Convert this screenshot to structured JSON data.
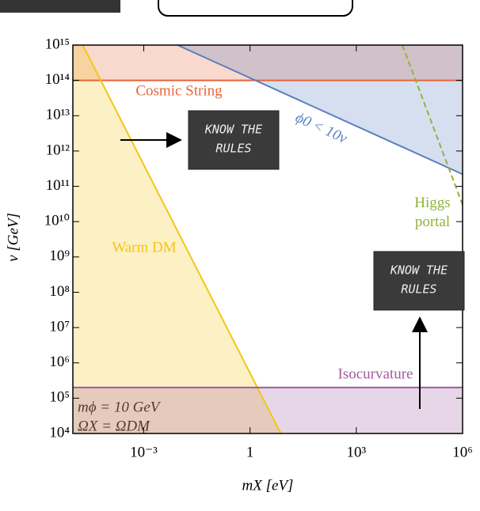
{
  "chart_data": {
    "type": "line",
    "log_x": true,
    "log_y": true,
    "x_label": "mX [eV]",
    "y_label": "v [GeV]",
    "xlim": [
      1e-05,
      1000000
    ],
    "ylim": [
      10000,
      1000000000000000
    ],
    "xticks": [
      {
        "value": 0.001,
        "label": "10⁻³"
      },
      1,
      {
        "value": 1000,
        "label": "10³"
      },
      {
        "value": 1000000,
        "label": "10⁶"
      }
    ],
    "yticks": [
      {
        "value": 10000,
        "label": "10⁴"
      },
      {
        "value": 100000,
        "label": "10⁵"
      },
      {
        "value": 1000000,
        "label": "10⁶"
      },
      {
        "value": 10000000,
        "label": "10⁷"
      },
      {
        "value": 100000000,
        "label": "10⁸"
      },
      {
        "value": 1000000000,
        "label": "10⁹"
      },
      {
        "value": 10000000000,
        "label": "10¹⁰"
      },
      {
        "value": 100000000000,
        "label": "10¹¹"
      },
      {
        "value": 1000000000000,
        "label": "10¹²"
      },
      {
        "value": 10000000000000,
        "label": "10¹³"
      },
      {
        "value": 100000000000000,
        "label": "10¹⁴"
      },
      {
        "value": 1000000000000000,
        "label": "10¹⁵"
      }
    ],
    "series": [
      {
        "name": "Cosmic String",
        "color": "#e8643a",
        "fill": "above",
        "x": [
          1e-05,
          1000000
        ],
        "values": [
          100000000000000,
          100000000000000
        ]
      },
      {
        "name": "Warm DM",
        "color": "#f5c518",
        "fill": "left",
        "x": [
          1.9e-05,
          7.4
        ],
        "values": [
          1000000000000000,
          10000
        ]
      },
      {
        "name": "ϕ0 < 10v",
        "color": "#5b7fbf",
        "fill": "above",
        "x": [
          0.009,
          1000000
        ],
        "values": [
          1000000000000000,
          220000000000
        ]
      },
      {
        "name": "Higgs portal",
        "color": "#8fb33a",
        "dashed": true,
        "x": [
          20000,
          1000000
        ],
        "values": [
          1000000000000000,
          30000000000
        ]
      },
      {
        "name": "Isocurvature",
        "color": "#a05aa0",
        "fill": "below",
        "x": [
          1e-05,
          1000000
        ],
        "values": [
          200000,
          200000
        ]
      }
    ],
    "annotations": [
      "mϕ = 10 GeV",
      "ΩX = ΩDM"
    ]
  },
  "overlays": [
    {
      "lines": [
        "KNOW THE",
        "RULES"
      ]
    },
    {
      "lines": [
        "KNOW THE",
        "RULES"
      ]
    }
  ]
}
